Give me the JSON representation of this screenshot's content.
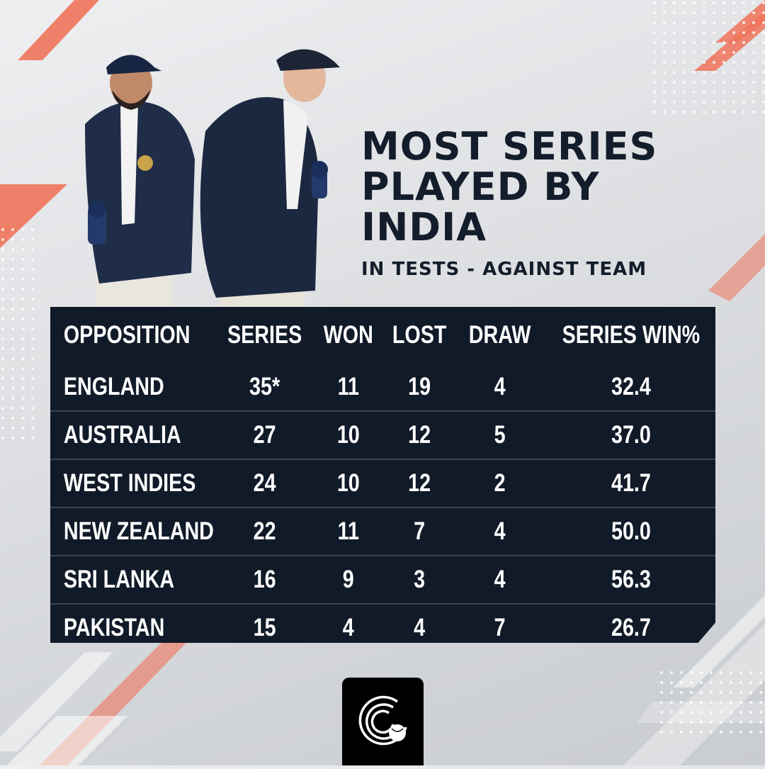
{
  "title": {
    "line1": "MOST SERIES",
    "line2": "PLAYED BY",
    "line3": "INDIA"
  },
  "subtitle": "IN TESTS - AGAINST TEAM",
  "table": {
    "headers": {
      "opposition": "OPPOSITION",
      "series": "SERIES",
      "won": "WON",
      "lost": "LOST",
      "draw": "DRAW",
      "win_pct": "SERIES WIN%"
    },
    "rows": [
      {
        "opposition": "ENGLAND",
        "series": "35*",
        "won": "11",
        "lost": "19",
        "draw": "4",
        "win_pct": "32.4"
      },
      {
        "opposition": "AUSTRALIA",
        "series": "27",
        "won": "10",
        "lost": "12",
        "draw": "5",
        "win_pct": "37.0"
      },
      {
        "opposition": "WEST INDIES",
        "series": "24",
        "won": "10",
        "lost": "12",
        "draw": "2",
        "win_pct": "41.7"
      },
      {
        "opposition": "NEW ZEALAND",
        "series": "22",
        "won": "11",
        "lost": "7",
        "draw": "4",
        "win_pct": "50.0"
      },
      {
        "opposition": "SRI LANKA",
        "series": "16",
        "won": "9",
        "lost": "3",
        "draw": "4",
        "win_pct": "56.3"
      },
      {
        "opposition": "PAKISTAN",
        "series": "15",
        "won": "4",
        "lost": "4",
        "draw": "7",
        "win_pct": "26.7"
      }
    ]
  },
  "colors": {
    "accent": "#f0735a",
    "table_bg": "#111a28",
    "title_text": "#141d2b",
    "table_text": "#ffffff",
    "divider": "#3a4350"
  },
  "icons": {
    "brand_logo": "cricket-ball-logo-icon"
  }
}
